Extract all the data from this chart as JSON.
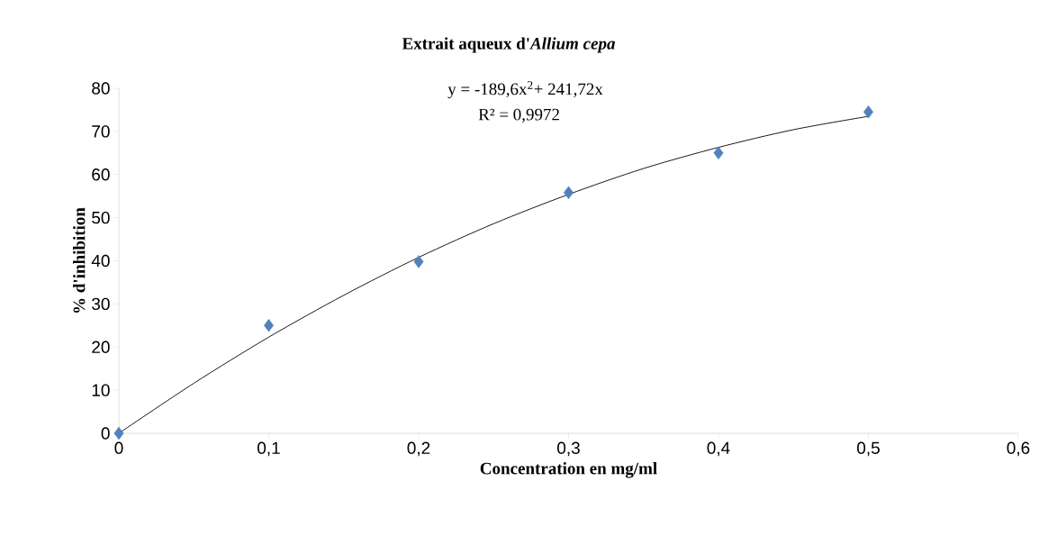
{
  "chart_data": {
    "type": "scatter",
    "title": "Extrait aqueux d'*Allium cepa*",
    "xlabel": "Concentration en mg/ml",
    "ylabel": "% d'inhibition",
    "annotations": [
      "y = -189,6x$^{2}$+ 241,72x",
      "R² = 0,9972"
    ],
    "xlim": [
      0,
      0.6
    ],
    "ylim": [
      0,
      80
    ],
    "xticks": [
      0,
      {
        "value": 0.1,
        "label": "0,1"
      },
      {
        "value": 0.2,
        "label": "0,2"
      },
      {
        "value": 0.3,
        "label": "0,3"
      },
      {
        "value": 0.4,
        "label": "0,4"
      },
      {
        "value": 0.5,
        "label": "0,5"
      },
      {
        "value": 0.6,
        "label": "0,6"
      }
    ],
    "yticks": [
      0,
      10,
      20,
      30,
      40,
      50,
      60,
      70,
      80
    ],
    "grid": false,
    "series": [
      {
        "type": "line",
        "color": "#000000",
        "marker": "none",
        "line_style": "solid",
        "x": [
          0,
          0.05,
          0.1,
          0.15,
          0.2,
          0.25,
          0.3,
          0.35,
          0.4,
          0.45,
          0.5
        ],
        "values": [
          0,
          11.6,
          22.3,
          32,
          40.8,
          48.6,
          55.4,
          61.4,
          66.3,
          70.4,
          73.5
        ]
      },
      {
        "color": "#4f81bd",
        "marker": "diamond",
        "x": [
          0,
          0.1,
          0.2,
          0.3,
          0.4,
          0.5
        ],
        "values": [
          0,
          25,
          39.8,
          55.8,
          65,
          74.5
        ]
      }
    ]
  }
}
